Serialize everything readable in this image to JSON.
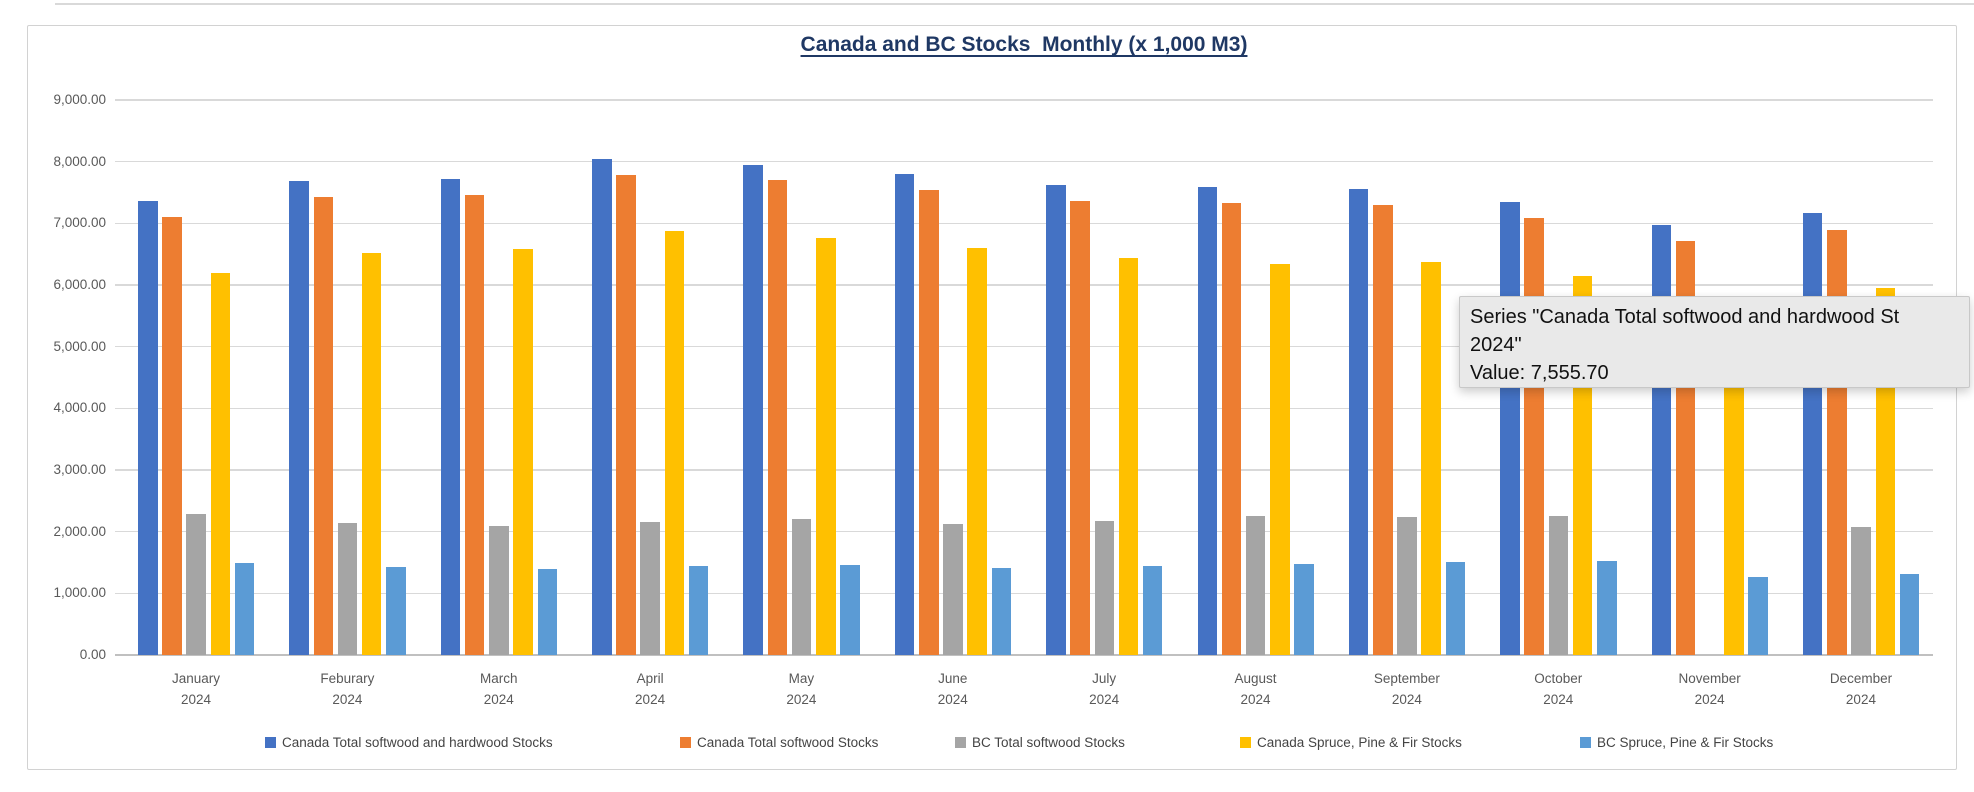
{
  "tooltip": {
    "line1": "Series \"Canada Total softwood and hardwood St",
    "line2": "2024\"",
    "line3": "Value: 7,555.70",
    "value": "7,555.70",
    "hovered_series": "Canada Total softwood and hardwood Stocks",
    "hovered_month": "September 2024"
  },
  "chart_data": {
    "type": "bar",
    "title": "Canada and BC Stocks  Monthly (x 1,000 M3)",
    "xlabel": "",
    "ylabel": "",
    "unit": "x 1,000 M3",
    "ylim": [
      0,
      9000
    ],
    "y_tick_step": 1000,
    "y_ticks": [
      "0.00",
      "1,000.00",
      "2,000.00",
      "3,000.00",
      "4,000.00",
      "5,000.00",
      "6,000.00",
      "7,000.00",
      "8,000.00",
      "9,000.00"
    ],
    "grid": "horizontal",
    "legend_position": "bottom",
    "categories": [
      "January",
      "Feburary",
      "March",
      "April",
      "May",
      "June",
      "July",
      "August",
      "September",
      "October",
      "November",
      "December"
    ],
    "category_year": "2024",
    "series": [
      {
        "name": "Canada Total softwood and hardwood Stocks",
        "color": "#4472C4",
        "values": [
          7370,
          7690,
          7715,
          8040,
          7950,
          7800,
          7620,
          7590,
          7555.7,
          7340,
          6980,
          7170
        ]
      },
      {
        "name": "Canada Total softwood Stocks",
        "color": "#ED7D31",
        "values": [
          7110,
          7420,
          7460,
          7790,
          7700,
          7540,
          7360,
          7330,
          7300,
          7080,
          6720,
          6890
        ]
      },
      {
        "name": "BC Total softwood Stocks",
        "color": "#A5A5A5",
        "values": [
          2280,
          2140,
          2090,
          2160,
          2210,
          2130,
          2180,
          2250,
          2230,
          2250,
          null,
          2070
        ]
      },
      {
        "name": "Canada Spruce, Pine & Fir Stocks",
        "color": "#FFC000",
        "values": [
          6200,
          6520,
          6580,
          6880,
          6760,
          6600,
          6430,
          6340,
          6370,
          6140,
          5720,
          5950
        ]
      },
      {
        "name": "BC Spruce, Pine & Fir Stocks",
        "color": "#5B9BD5",
        "values": [
          1500,
          1430,
          1390,
          1440,
          1460,
          1410,
          1440,
          1470,
          1510,
          1520,
          1270,
          1310
        ]
      }
    ]
  }
}
